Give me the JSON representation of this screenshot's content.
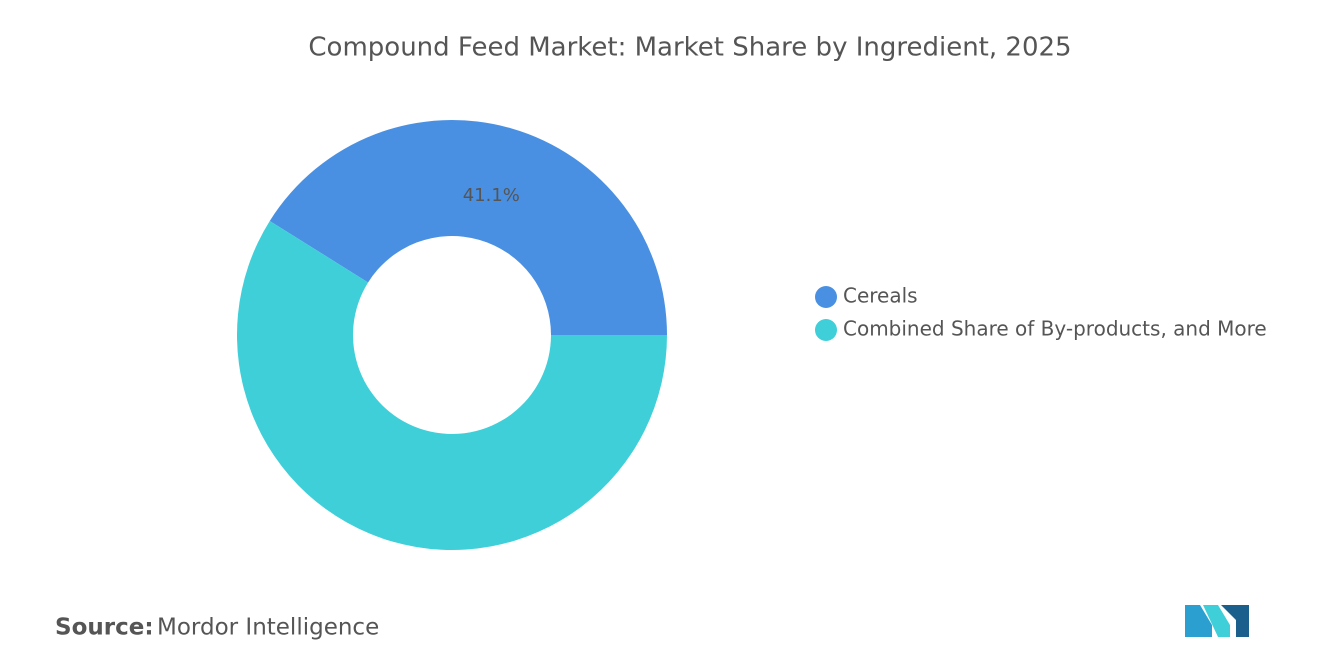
{
  "chart_data": {
    "type": "donut",
    "title": "Compound Feed Market: Market Share by Ingredient, 2025",
    "categories": [
      "Cereals",
      "Combined Share of By-products, and More"
    ],
    "values": [
      41.1,
      58.9
    ],
    "value_labels": [
      "41.1%",
      null
    ],
    "colors": [
      "#4a90e2",
      "#3fcfd9"
    ],
    "legend": "right"
  },
  "footer": {
    "source_label": "Source:",
    "source": "Mordor Intelligence"
  }
}
